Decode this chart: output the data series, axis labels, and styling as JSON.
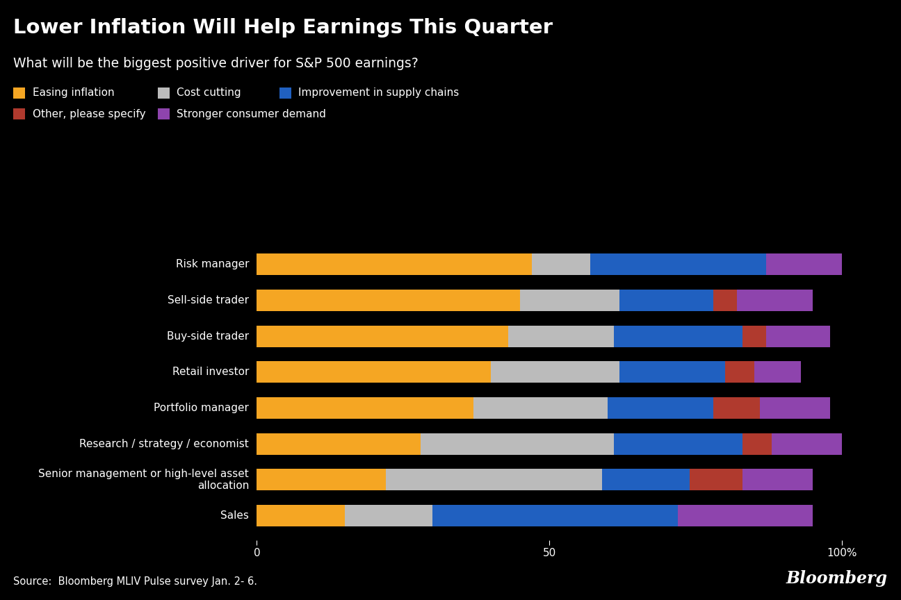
{
  "title": "Lower Inflation Will Help Earnings This Quarter",
  "subtitle": "What will be the biggest positive driver for S&P 500 earnings?",
  "source": "Source:  Bloomberg MLIV Pulse survey Jan. 2- 6.",
  "categories": [
    "Risk manager",
    "Sell-side trader",
    "Buy-side trader",
    "Retail investor",
    "Portfolio manager",
    "Research / strategy / economist",
    "Senior management or high-level asset\nallocation",
    "Sales"
  ],
  "segment_names": [
    "Easing inflation",
    "Cost cutting",
    "Improvement in supply chains",
    "Other, please specify",
    "Stronger consumer demand"
  ],
  "segments": {
    "Easing inflation": [
      47,
      45,
      43,
      40,
      37,
      28,
      22,
      15
    ],
    "Cost cutting": [
      10,
      17,
      18,
      22,
      23,
      33,
      37,
      15
    ],
    "Improvement in supply chains": [
      30,
      16,
      22,
      18,
      18,
      22,
      15,
      42
    ],
    "Other, please specify": [
      0,
      4,
      4,
      5,
      8,
      5,
      9,
      0
    ],
    "Stronger consumer demand": [
      13,
      13,
      11,
      8,
      12,
      12,
      12,
      23
    ]
  },
  "colors": {
    "Easing inflation": "#F5A623",
    "Cost cutting": "#BBBBBB",
    "Improvement in supply chains": "#2060C0",
    "Other, please specify": "#B03A2E",
    "Stronger consumer demand": "#8E44AD"
  },
  "background_color": "#000000",
  "text_color": "#FFFFFF",
  "bar_height": 0.6,
  "xlim": [
    0,
    107
  ],
  "xticks": [
    0,
    50,
    100
  ],
  "xtick_labels": [
    "0",
    "50",
    "100%"
  ],
  "bloomberg_text": "Bloomberg",
  "legend_row1": [
    "Easing inflation",
    "Cost cutting",
    "Improvement in supply chains"
  ],
  "legend_row2": [
    "Other, please specify",
    "Stronger consumer demand"
  ]
}
